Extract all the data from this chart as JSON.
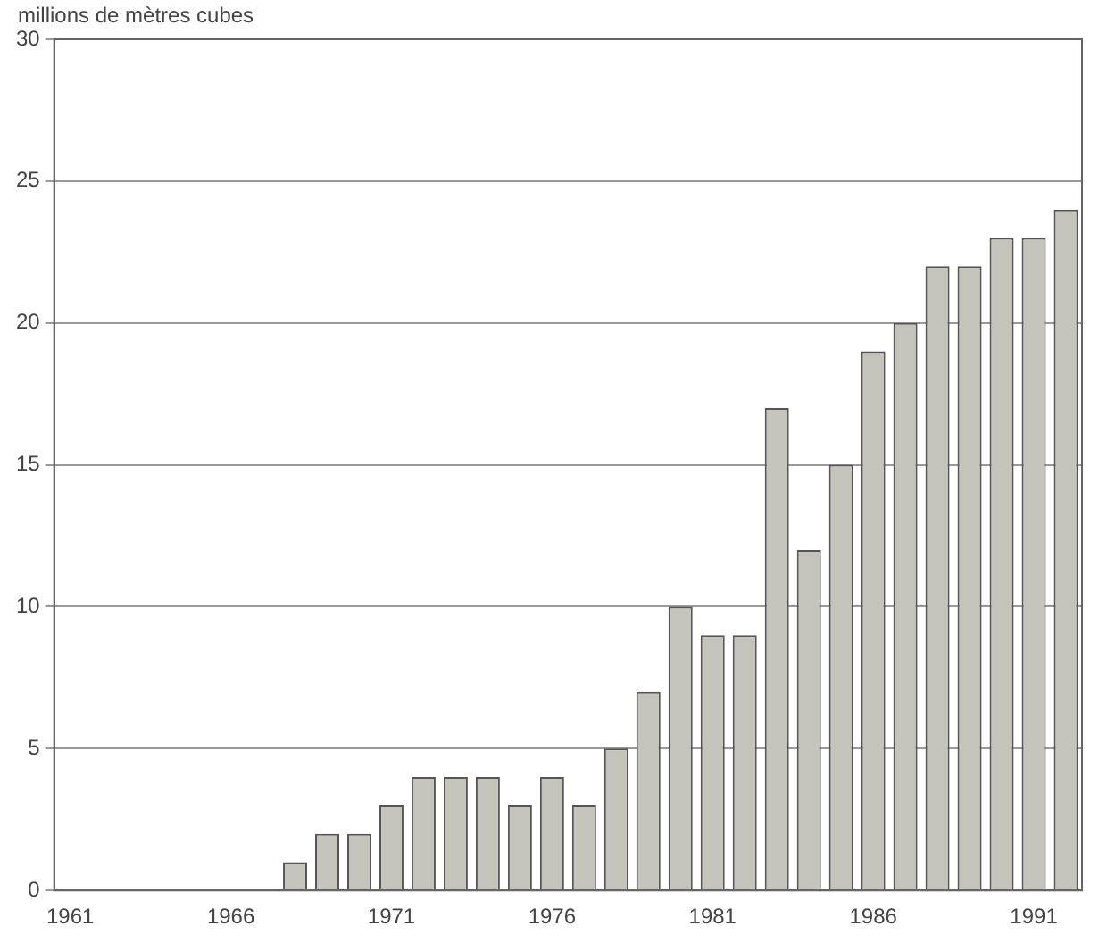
{
  "chart_data": {
    "type": "bar",
    "ylabel": "millions de mètres cubes",
    "categories": [
      "1961",
      null,
      null,
      null,
      null,
      "1966",
      null,
      null,
      null,
      null,
      "1971",
      null,
      null,
      null,
      null,
      "1976",
      null,
      null,
      null,
      null,
      "1981",
      null,
      null,
      null,
      null,
      "1986",
      null,
      null,
      null,
      null,
      "1991",
      null
    ],
    "values": [
      0,
      0,
      0,
      0,
      0,
      0,
      0,
      1,
      2,
      2,
      3,
      4,
      4,
      4,
      3,
      4,
      3,
      5,
      7,
      10,
      9,
      9,
      17,
      12,
      15,
      19,
      20,
      22,
      22,
      23,
      23,
      24
    ],
    "color": "#c4c4bc",
    "ylim": [
      0,
      30
    ],
    "yticks": [
      0,
      5,
      10,
      15,
      20,
      25,
      30
    ],
    "grid": "y",
    "legend": false
  }
}
